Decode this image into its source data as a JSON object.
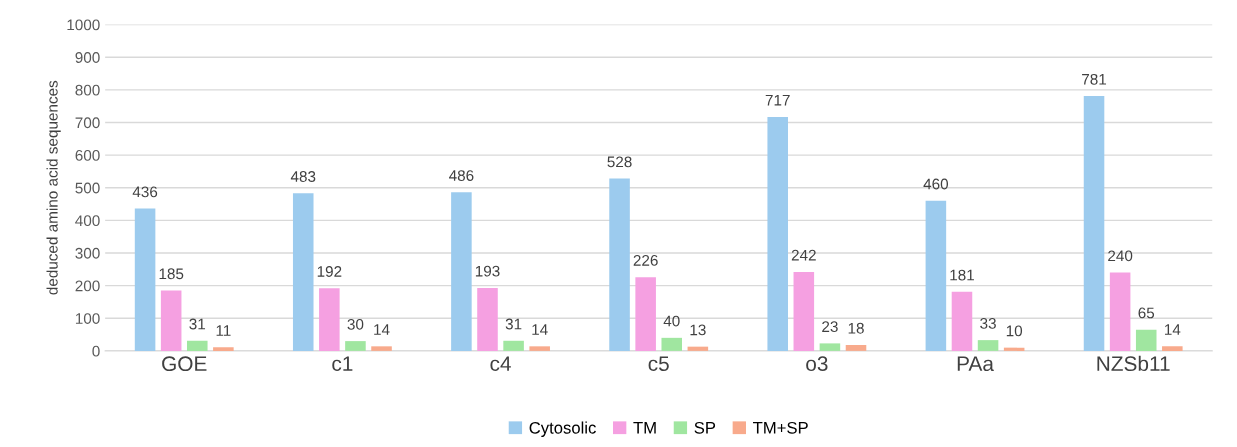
{
  "chart_data": {
    "type": "bar",
    "ylabel": "deduced amino acid sequences",
    "categories": [
      "GOE",
      "c1",
      "c4",
      "c5",
      "o3",
      "PAa",
      "NZSb11"
    ],
    "series": [
      {
        "name": "Cytosolic",
        "color": "#9ccbee",
        "values": [
          436,
          483,
          486,
          528,
          717,
          460,
          781
        ]
      },
      {
        "name": "TM",
        "color": "#f5a0e1",
        "values": [
          185,
          192,
          193,
          226,
          242,
          181,
          240
        ]
      },
      {
        "name": "SP",
        "color": "#a0e6a0",
        "values": [
          31,
          30,
          31,
          40,
          23,
          33,
          65
        ]
      },
      {
        "name": "TM+SP",
        "color": "#f8aa8c",
        "values": [
          11,
          14,
          14,
          13,
          18,
          10,
          14
        ]
      }
    ],
    "ylim": [
      0,
      1000
    ],
    "yticks": [
      0,
      100,
      200,
      300,
      400,
      500,
      600,
      700,
      800,
      900,
      1000
    ],
    "grid": "y",
    "legend": "bottom",
    "data_labels": true
  }
}
